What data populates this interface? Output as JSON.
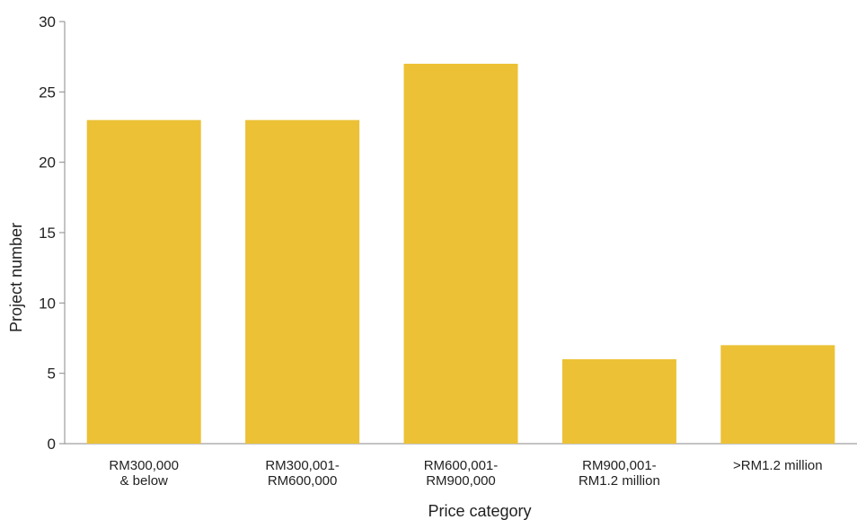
{
  "chart_data": {
    "type": "bar",
    "title": "",
    "xlabel": "Price category",
    "ylabel": "Project number",
    "categories": [
      [
        "RM300,000",
        "& below"
      ],
      [
        "RM300,001-",
        "RM600,000"
      ],
      [
        "RM600,001-",
        "RM900,000"
      ],
      [
        "RM900,001-",
        "RM1.2 million"
      ],
      [
        ">RM1.2 million"
      ]
    ],
    "values": [
      23,
      23,
      27,
      6,
      7
    ],
    "ylim": [
      0,
      30
    ],
    "yticks": [
      0,
      5,
      10,
      15,
      20,
      25,
      30
    ],
    "grid": false,
    "legend": "none",
    "bar_color": "#ECC135",
    "axis_color": "#888888"
  }
}
